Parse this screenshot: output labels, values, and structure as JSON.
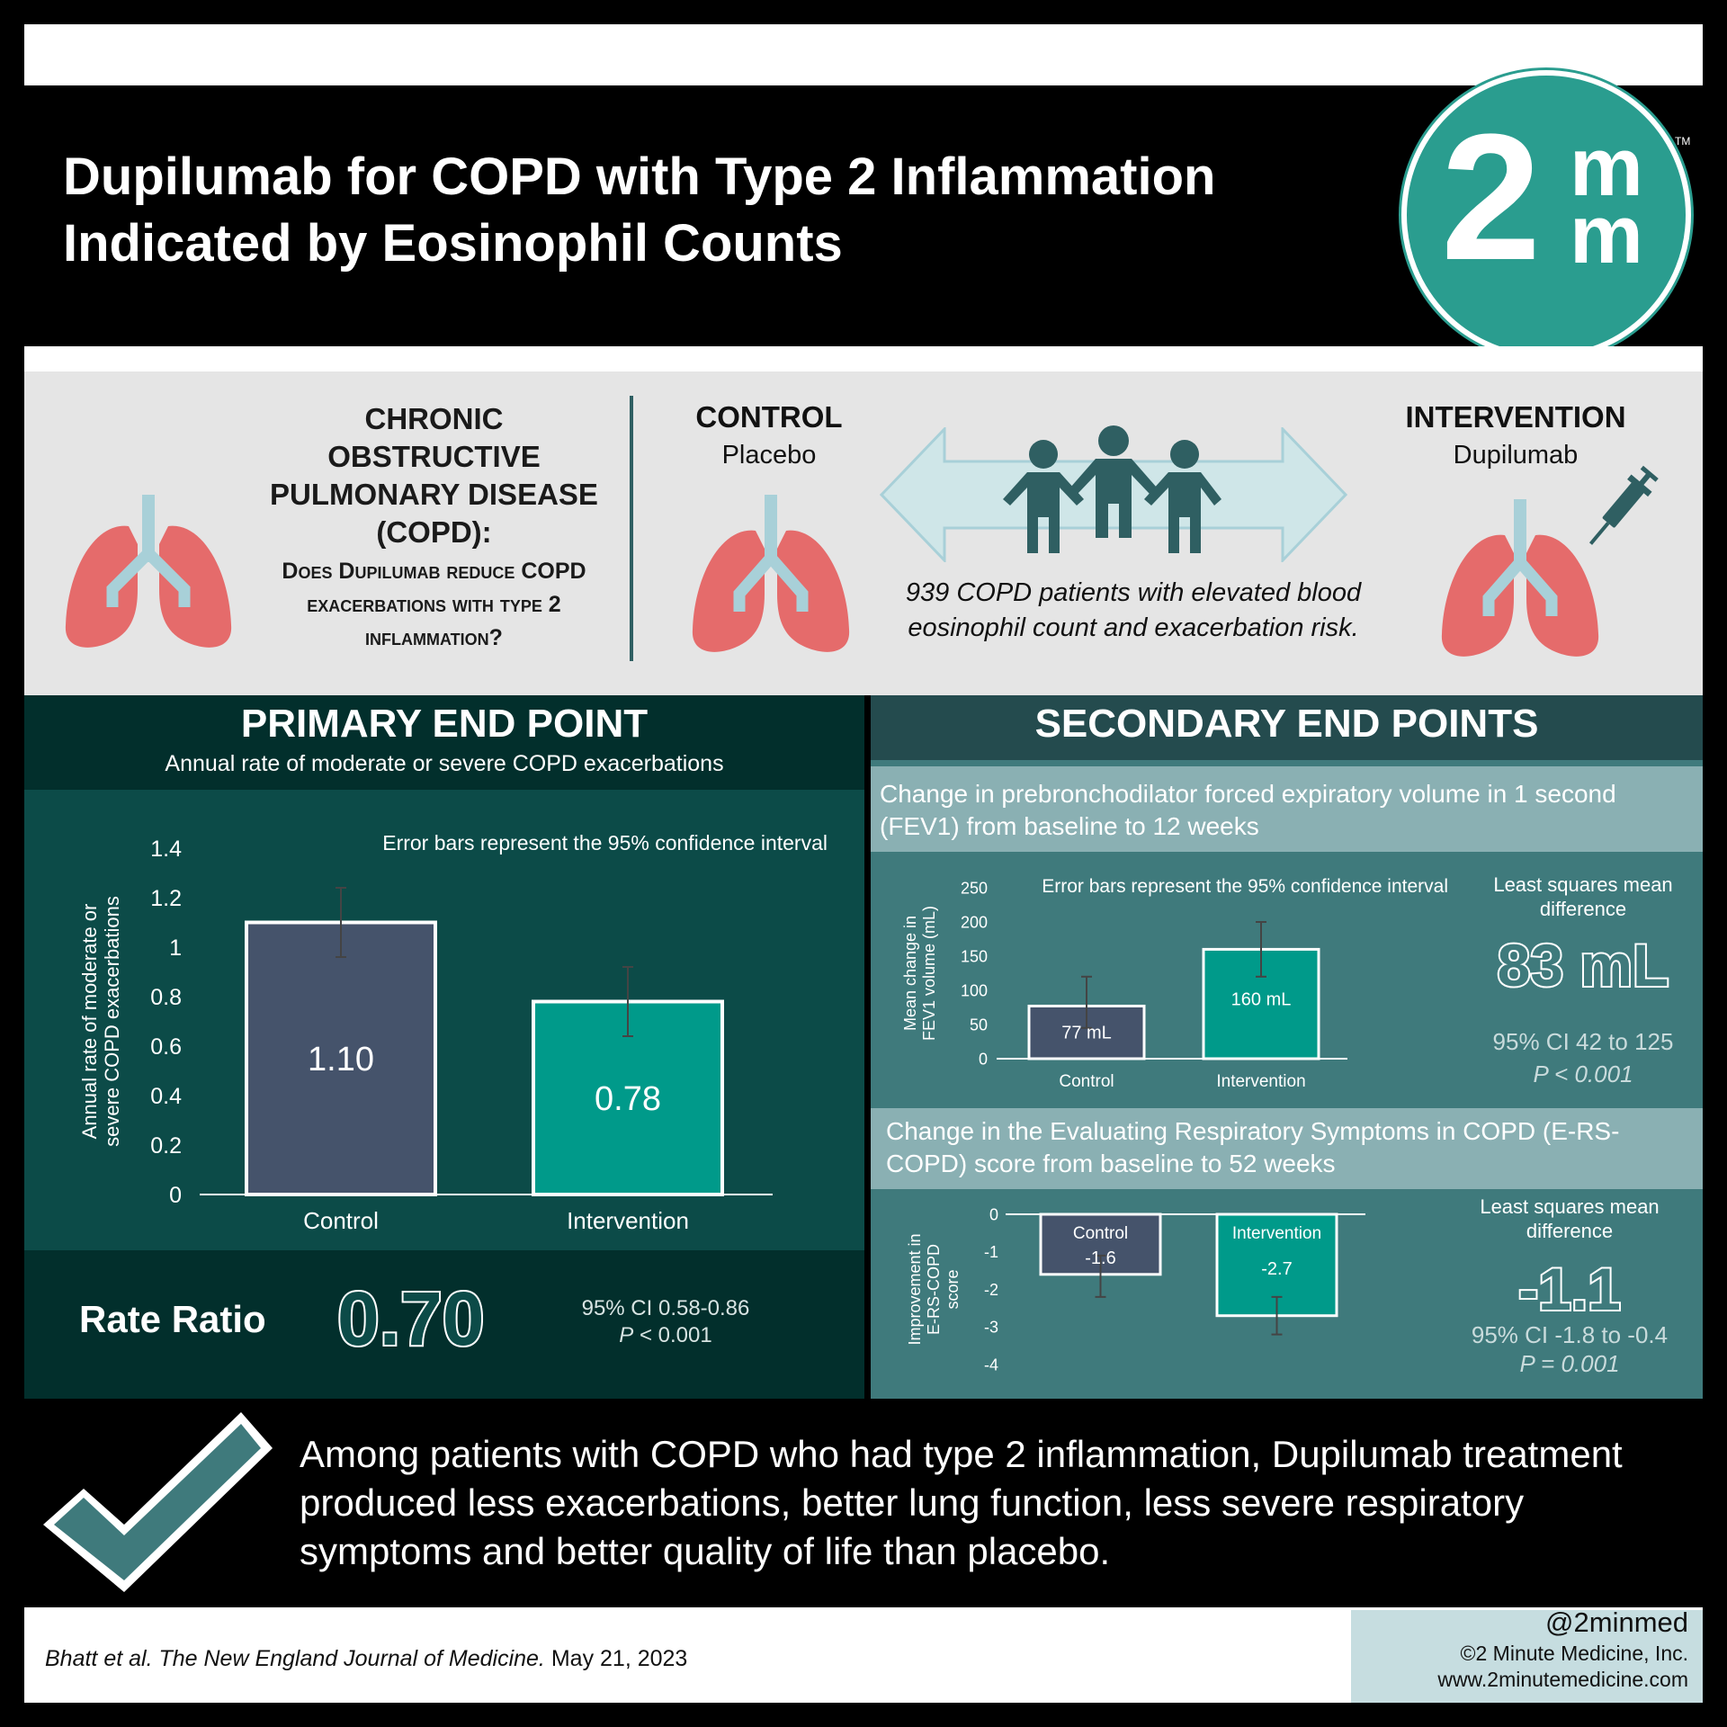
{
  "header": {
    "title_line1": "Dupilumab for COPD with Type 2 Inflammation",
    "title_line2": "Indicated by Eosinophil Counts",
    "logo": {
      "main": "2",
      "m1": "m",
      "m2": "m",
      "tm": "TM",
      "color": "#2a9d8f"
    }
  },
  "design": {
    "copd_title": "CHRONIC OBSTRUCTIVE PULMONARY DISEASE (COPD):",
    "question": "Does Dupilumab reduce COPD exacerbations with type 2 inflammation?",
    "control_label": "CONTROL",
    "control_sub": "Placebo",
    "intervention_label": "INTERVENTION",
    "intervention_sub": "Dupilumab",
    "patients_text": "939 COPD patients with elevated blood eosinophil count and exacerbation risk.",
    "icons": [
      "lungs-icon",
      "people-icon",
      "syringe-icon",
      "double-arrow-icon"
    ]
  },
  "primary": {
    "title": "PRIMARY END POINT",
    "subtitle": "Annual rate of moderate or severe COPD exacerbations",
    "rate_ratio_label": "Rate Ratio",
    "rate_ratio_value": "0.70",
    "ci": "95% CI 0.58-0.86",
    "p_label": "P",
    "p_value": " < 0.001"
  },
  "secondary": {
    "title": "SECONDARY END POINTS",
    "fev_desc": "Change in prebronchodilator forced expiratory volume in 1 second (FEV1) from baseline to 12 weeks",
    "fev_lsm_label": "Least squares mean difference",
    "fev_value": "83 mL",
    "fev_ci": "95% CI 42 to 125",
    "fev_p": "P < 0.001",
    "ers_desc": "Change in the Evaluating Respiratory Symptoms in COPD (E-RS-COPD) score from baseline to 52 weeks",
    "ers_lsm_label": "Least squares mean difference",
    "ers_value": "-1.1",
    "ers_ci": "95% CI -1.8 to -0.4",
    "ers_p": "P = 0.001"
  },
  "conclusion": {
    "text": "Among patients with COPD who had type 2 inflammation, Dupilumab treatment produced less exacerbations, better lung function, less severe respiratory symptoms and better quality of life than placebo."
  },
  "footer": {
    "citation_authors": "Bhatt et al. ",
    "citation_journal": "The New England Journal of Medicine.",
    "citation_date": " May 21, 2023",
    "handle": "@2minmed",
    "copyright": "©2 Minute Medicine, Inc.",
    "url": "www.2minutemedicine.com"
  },
  "colors": {
    "control": "#45536b",
    "intervention": "#009a8a",
    "teal_dark": "#0c4b48",
    "lung_pink": "#e56b6b",
    "bronchi": "#a8d0d8",
    "people": "#2f5f62"
  },
  "chart_data": [
    {
      "type": "bar",
      "note": "Error bars represent the 95% confidence interval",
      "ylabel": "Annual rate of moderate or severe COPD exacerbations",
      "categories": [
        "Control",
        "Intervention"
      ],
      "values": [
        1.1,
        0.78
      ],
      "value_labels": [
        "1.10",
        "0.78"
      ],
      "error_low": [
        0.96,
        0.64
      ],
      "error_high": [
        1.24,
        0.92
      ],
      "ylim": [
        0,
        1.4
      ],
      "yticks": [
        "0",
        "0.2",
        "0.4",
        "0.6",
        "0.8",
        "1",
        "1.2",
        "1.4"
      ],
      "ytick_values": [
        0,
        0.2,
        0.4,
        0.6,
        0.8,
        1.0,
        1.2,
        1.4
      ]
    },
    {
      "type": "bar",
      "note": "Error bars represent the 95% confidence interval",
      "ylabel": "Mean change in FEV1 volume (mL)",
      "categories": [
        "Control",
        "Intervention"
      ],
      "values": [
        77,
        160
      ],
      "value_labels": [
        "77 mL",
        "160 mL"
      ],
      "error_low": [
        45,
        120
      ],
      "error_high": [
        120,
        200
      ],
      "ylim": [
        0,
        250
      ],
      "yticks": [
        "0",
        "50",
        "100",
        "150",
        "200",
        "250"
      ],
      "ytick_values": [
        0,
        50,
        100,
        150,
        200,
        250
      ]
    },
    {
      "type": "bar",
      "ylabel": "Improvement in E-RS-COPD score",
      "categories": [
        "Control",
        "Intervention"
      ],
      "values": [
        -1.6,
        -2.7
      ],
      "value_labels": [
        "-1.6",
        "-2.7"
      ],
      "error_low": [
        -2.2,
        -3.2
      ],
      "error_high": [
        -1.1,
        -2.2
      ],
      "ylim": [
        -4,
        0
      ],
      "yticks": [
        "0",
        "-1",
        "-2",
        "-3",
        "-4"
      ],
      "ytick_values": [
        0,
        -1,
        -2,
        -3,
        -4
      ]
    }
  ]
}
